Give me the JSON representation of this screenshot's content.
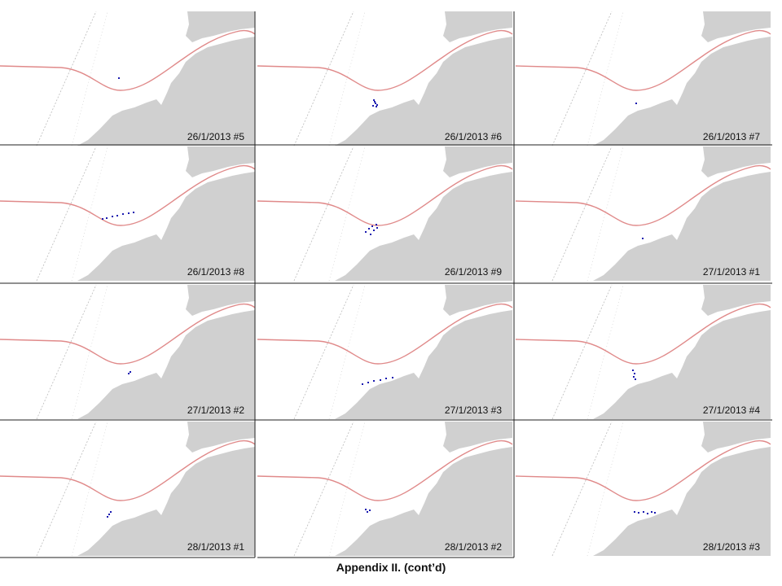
{
  "panels": [
    {
      "label": "26/1/2013 #5"
    },
    {
      "label": "26/1/2013 #6"
    },
    {
      "label": "26/1/2013 #7"
    },
    {
      "label": "26/1/2013 #8"
    },
    {
      "label": "26/1/2013 #9"
    },
    {
      "label": "27/1/2013 #1"
    },
    {
      "label": "27/1/2013 #2"
    },
    {
      "label": "27/1/2013 #3"
    },
    {
      "label": "27/1/2013 #4"
    },
    {
      "label": "28/1/2013 #1"
    },
    {
      "label": "28/1/2013 #2"
    },
    {
      "label": "28/1/2013 #3"
    }
  ],
  "caption": "Appendix II. (cont’d)"
}
